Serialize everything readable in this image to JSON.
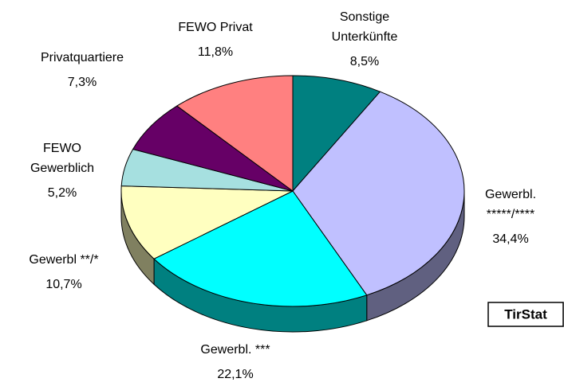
{
  "chart_data": {
    "type": "pie3d",
    "categories": [
      "Sonstige\nUnterkünfte",
      "Gewerbl.\n*****/****",
      "Gewerbl. ***",
      "Gewerbl **/*",
      "FEWO\nGewerblich",
      "Privatquartiere",
      "FEWO Privat"
    ],
    "values": [
      8.5,
      34.4,
      22.1,
      10.7,
      5.2,
      7.3,
      11.8
    ],
    "value_labels": [
      "8,5%",
      "34,4%",
      "22,1%",
      "10,7%",
      "5,2%",
      "7,3%",
      "11,8%"
    ],
    "colors": [
      "#008080",
      "#c0c0ff",
      "#00ffff",
      "#ffffc0",
      "#a6e0e0",
      "#660066",
      "#ff8080"
    ],
    "annotation": "TirStat"
  }
}
